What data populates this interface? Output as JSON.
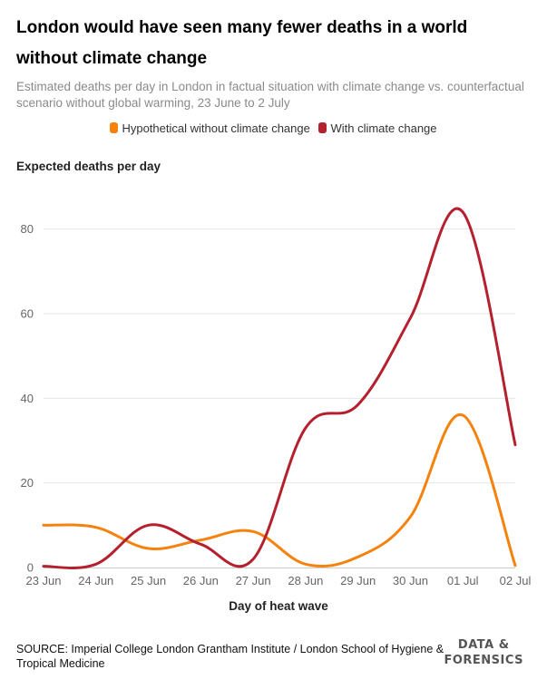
{
  "title": "London would have seen many fewer deaths in a world without climate change",
  "subtitle": "Estimated deaths per day in London in factual situation with climate change vs. counterfactual scenario without global warming, 23 June to 2 July",
  "source": "SOURCE: Imperial College London Grantham Institute / London School of Hygiene & Tropical Medicine",
  "brand": {
    "line1": "DATA &",
    "line2": "FORENSICS"
  },
  "chart_data": {
    "type": "line",
    "categories": [
      "23 Jun",
      "24 Jun",
      "25 Jun",
      "26 Jun",
      "27 Jun",
      "28 Jun",
      "29 Jun",
      "30 Jun",
      "01 Jul",
      "02 Jul"
    ],
    "series": [
      {
        "name": "Hypothetical without climate change",
        "color": "#f5820d",
        "values": [
          10,
          9.5,
          4.5,
          6.5,
          8.5,
          0.8,
          2.5,
          12,
          36,
          0.5
        ]
      },
      {
        "name": "With climate change",
        "color": "#b5202e",
        "values": [
          0.3,
          0.8,
          10,
          5.5,
          2,
          33,
          38.5,
          59,
          84,
          29
        ]
      }
    ],
    "xlabel": "Day of heat wave",
    "ylabel": "Expected deaths per day",
    "yticks": [
      0,
      20,
      40,
      60,
      80
    ],
    "ylim": [
      0,
      90
    ],
    "grid": true,
    "legend_position": "top"
  }
}
